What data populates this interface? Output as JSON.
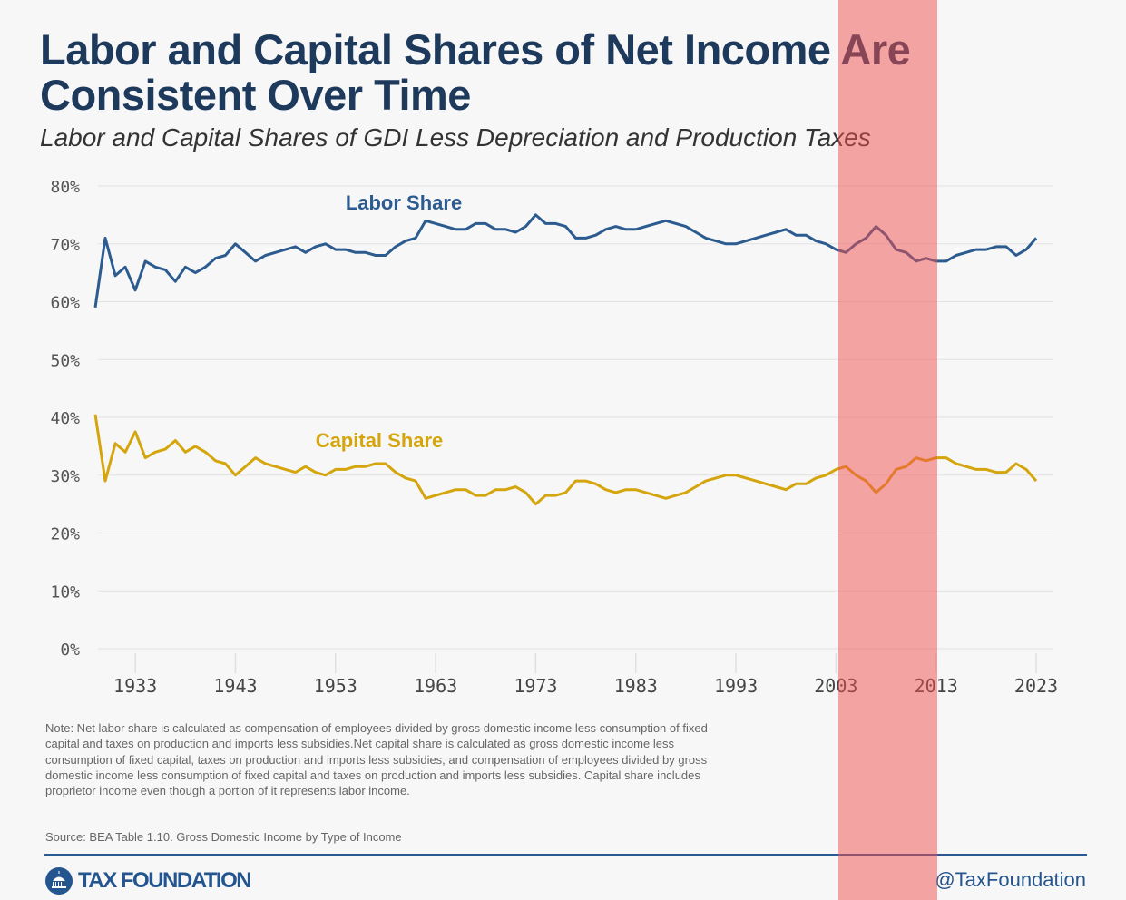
{
  "header": {
    "title": "Labor and Capital Shares of Net Income Are Consistent Over Time",
    "subtitle": "Labor and Capital Shares of GDI Less Depreciation and Production Taxes"
  },
  "chart_data": {
    "type": "line",
    "title": "Labor and Capital Shares of Net Income Are Consistent Over Time",
    "subtitle": "Labor and Capital Shares of GDI Less Depreciation and Production Taxes",
    "xlabel": "",
    "ylabel": "",
    "ylim": [
      0,
      80
    ],
    "xlim": [
      1929,
      2023
    ],
    "y_ticks": [
      "0%",
      "10%",
      "20%",
      "30%",
      "40%",
      "50%",
      "60%",
      "70%",
      "80%"
    ],
    "y_tick_values": [
      0,
      10,
      20,
      30,
      40,
      50,
      60,
      70,
      80
    ],
    "x_ticks": [
      "1933",
      "1943",
      "1953",
      "1963",
      "1973",
      "1983",
      "1993",
      "2003",
      "2013",
      "2023"
    ],
    "grid": true,
    "x": [
      1929,
      1930,
      1931,
      1932,
      1933,
      1934,
      1935,
      1936,
      1937,
      1938,
      1939,
      1940,
      1941,
      1942,
      1943,
      1944,
      1945,
      1946,
      1947,
      1948,
      1949,
      1950,
      1951,
      1952,
      1953,
      1954,
      1955,
      1956,
      1957,
      1958,
      1959,
      1960,
      1961,
      1962,
      1963,
      1964,
      1965,
      1966,
      1967,
      1968,
      1969,
      1970,
      1971,
      1972,
      1973,
      1974,
      1975,
      1976,
      1977,
      1978,
      1979,
      1980,
      1981,
      1982,
      1983,
      1984,
      1985,
      1986,
      1987,
      1988,
      1989,
      1990,
      1991,
      1992,
      1993,
      1994,
      1995,
      1996,
      1997,
      1998,
      1999,
      2000,
      2001,
      2002,
      2003,
      2004,
      2005,
      2006,
      2007,
      2008,
      2009,
      2010,
      2011,
      2012,
      2013,
      2014,
      2015,
      2016,
      2017,
      2018,
      2019,
      2020,
      2021,
      2022,
      2023
    ],
    "series": [
      {
        "name": "Labor Share",
        "color": "#2c5b8f",
        "values": [
          59,
          71,
          64.5,
          66,
          62,
          67,
          66,
          65.5,
          63.5,
          66,
          65,
          66,
          67.5,
          68,
          70,
          68.5,
          67,
          68,
          68.5,
          69,
          69.5,
          68.5,
          69.5,
          70,
          69,
          69,
          68.5,
          68.5,
          68,
          68,
          69.5,
          70.5,
          71,
          74,
          73.5,
          73,
          72.5,
          72.5,
          73.5,
          73.5,
          72.5,
          72.5,
          72,
          73,
          75,
          73.5,
          73.5,
          73,
          71,
          71,
          71.5,
          72.5,
          73,
          72.5,
          72.5,
          73,
          73.5,
          74,
          73.5,
          73,
          72,
          71,
          70.5,
          70,
          70,
          70.5,
          71,
          71.5,
          72,
          72.5,
          71.5,
          71.5,
          70.5,
          70,
          69,
          68.5,
          70,
          71,
          73,
          71.5,
          69,
          68.5,
          67,
          67.5,
          67,
          67,
          68,
          68.5,
          69,
          69,
          69.5,
          69.5,
          68,
          69,
          71
        ]
      },
      {
        "name": "Capital Share",
        "color": "#d4a50c",
        "values": [
          40.5,
          29,
          35.5,
          34,
          37.5,
          33,
          34,
          34.5,
          36,
          34,
          35,
          34,
          32.5,
          32,
          30,
          31.5,
          33,
          32,
          31.5,
          31,
          30.5,
          31.5,
          30.5,
          30,
          31,
          31,
          31.5,
          31.5,
          32,
          32,
          30.5,
          29.5,
          29,
          26,
          26.5,
          27,
          27.5,
          27.5,
          26.5,
          26.5,
          27.5,
          27.5,
          28,
          27,
          25,
          26.5,
          26.5,
          27,
          29,
          29,
          28.5,
          27.5,
          27,
          27.5,
          27.5,
          27,
          26.5,
          26,
          26.5,
          27,
          28,
          29,
          29.5,
          30,
          30,
          29.5,
          29,
          28.5,
          28,
          27.5,
          28.5,
          28.5,
          29.5,
          30,
          31,
          31.5,
          30,
          29,
          27,
          28.5,
          31,
          31.5,
          33,
          32.5,
          33,
          33,
          32,
          31.5,
          31,
          31,
          30.5,
          30.5,
          32,
          31,
          29
        ]
      }
    ],
    "annotations": [
      "Labor Share",
      "Capital Share"
    ]
  },
  "footer": {
    "note": "Note: Net labor share is calculated as compensation of employees divided by gross domestic income less consumption of fixed capital and taxes on production and imports less subsidies.Net capital share is calculated as gross domestic income less consumption of fixed capital, taxes on production and imports less subsidies, and compensation of employees divided by gross domestic income less consumption of fixed capital and taxes on production and imports less subsidies. Capital share includes proprietor income even though a portion of it represents labor income.",
    "source": "Source: BEA Table 1.10. Gross Domestic Income by Type of Income",
    "logo": "TAX FOUNDATION",
    "handle": "@TaxFoundation"
  }
}
